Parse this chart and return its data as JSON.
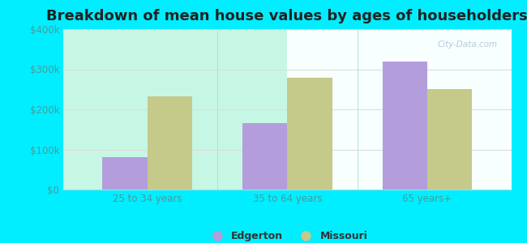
{
  "title": "Breakdown of mean house values by ages of householders",
  "categories": [
    "25 to 34 years",
    "35 to 64 years",
    "65 years+"
  ],
  "edgerton_values": [
    80000,
    165000,
    320000
  ],
  "missouri_values": [
    232000,
    278000,
    250000
  ],
  "edgerton_color": "#b39ddb",
  "missouri_color": "#c5c98a",
  "bar_width": 0.32,
  "ylim": [
    0,
    400000
  ],
  "yticks": [
    0,
    100000,
    200000,
    300000,
    400000
  ],
  "ytick_labels": [
    "$0",
    "$100k",
    "$200k",
    "$300k",
    "$400k"
  ],
  "background_outer": "#00eeff",
  "grid_color": "#dddddd",
  "legend_labels": [
    "Edgerton",
    "Missouri"
  ],
  "title_fontsize": 13,
  "tick_fontsize": 8.5,
  "legend_fontsize": 9,
  "tick_color": "#4a9a9a",
  "watermark": "City-Data.com"
}
